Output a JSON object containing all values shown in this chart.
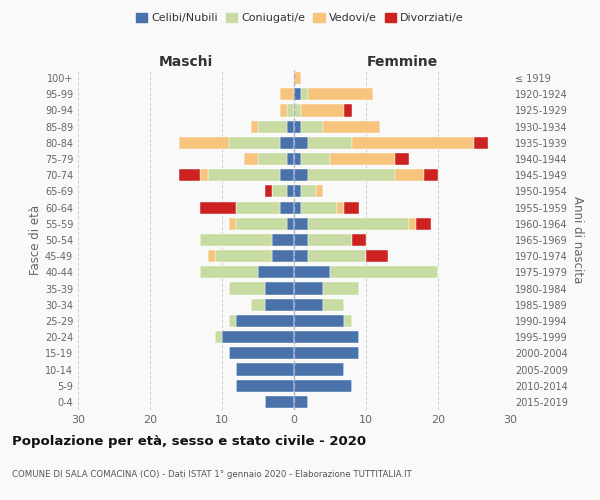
{
  "age_groups": [
    "0-4",
    "5-9",
    "10-14",
    "15-19",
    "20-24",
    "25-29",
    "30-34",
    "35-39",
    "40-44",
    "45-49",
    "50-54",
    "55-59",
    "60-64",
    "65-69",
    "70-74",
    "75-79",
    "80-84",
    "85-89",
    "90-94",
    "95-99",
    "100+"
  ],
  "birth_years": [
    "2015-2019",
    "2010-2014",
    "2005-2009",
    "2000-2004",
    "1995-1999",
    "1990-1994",
    "1985-1989",
    "1980-1984",
    "1975-1979",
    "1970-1974",
    "1965-1969",
    "1960-1964",
    "1955-1959",
    "1950-1954",
    "1945-1949",
    "1940-1944",
    "1935-1939",
    "1930-1934",
    "1925-1929",
    "1920-1924",
    "≤ 1919"
  ],
  "maschi": {
    "celibi": [
      4,
      8,
      8,
      9,
      10,
      8,
      4,
      4,
      5,
      3,
      3,
      1,
      2,
      1,
      2,
      1,
      2,
      1,
      0,
      0,
      0
    ],
    "coniugati": [
      0,
      0,
      0,
      0,
      1,
      1,
      2,
      5,
      8,
      8,
      10,
      7,
      6,
      2,
      10,
      4,
      7,
      4,
      1,
      0,
      0
    ],
    "vedovi": [
      0,
      0,
      0,
      0,
      0,
      0,
      0,
      0,
      0,
      1,
      0,
      1,
      0,
      0,
      1,
      2,
      7,
      1,
      1,
      2,
      0
    ],
    "divorziati": [
      0,
      0,
      0,
      0,
      0,
      0,
      0,
      0,
      0,
      0,
      0,
      0,
      5,
      1,
      3,
      0,
      0,
      0,
      0,
      0,
      0
    ]
  },
  "femmine": {
    "nubili": [
      2,
      8,
      7,
      9,
      9,
      7,
      4,
      4,
      5,
      2,
      2,
      2,
      1,
      1,
      2,
      1,
      2,
      1,
      0,
      1,
      0
    ],
    "coniugate": [
      0,
      0,
      0,
      0,
      0,
      1,
      3,
      5,
      15,
      8,
      6,
      14,
      5,
      2,
      12,
      4,
      6,
      3,
      1,
      1,
      0
    ],
    "vedove": [
      0,
      0,
      0,
      0,
      0,
      0,
      0,
      0,
      0,
      0,
      0,
      1,
      1,
      1,
      4,
      9,
      17,
      8,
      6,
      9,
      1
    ],
    "divorziate": [
      0,
      0,
      0,
      0,
      0,
      0,
      0,
      0,
      0,
      3,
      2,
      2,
      2,
      0,
      2,
      2,
      2,
      0,
      1,
      0,
      0
    ]
  },
  "colors": {
    "celibi": "#4a72aa",
    "coniugati": "#c8dba2",
    "vedovi": "#f6c47c",
    "divorziati": "#cc2222"
  },
  "xlim": 30,
  "title": "Popolazione per età, sesso e stato civile - 2020",
  "subtitle": "COMUNE DI SALA COMACINA (CO) - Dati ISTAT 1° gennaio 2020 - Elaborazione TUTTITALIA.IT",
  "ylabel_left": "Fasce di età",
  "ylabel_right": "Anni di nascita",
  "xlabel_maschi": "Maschi",
  "xlabel_femmine": "Femmine",
  "bg_color": "#f9f9f9",
  "grid_color": "#cccccc"
}
